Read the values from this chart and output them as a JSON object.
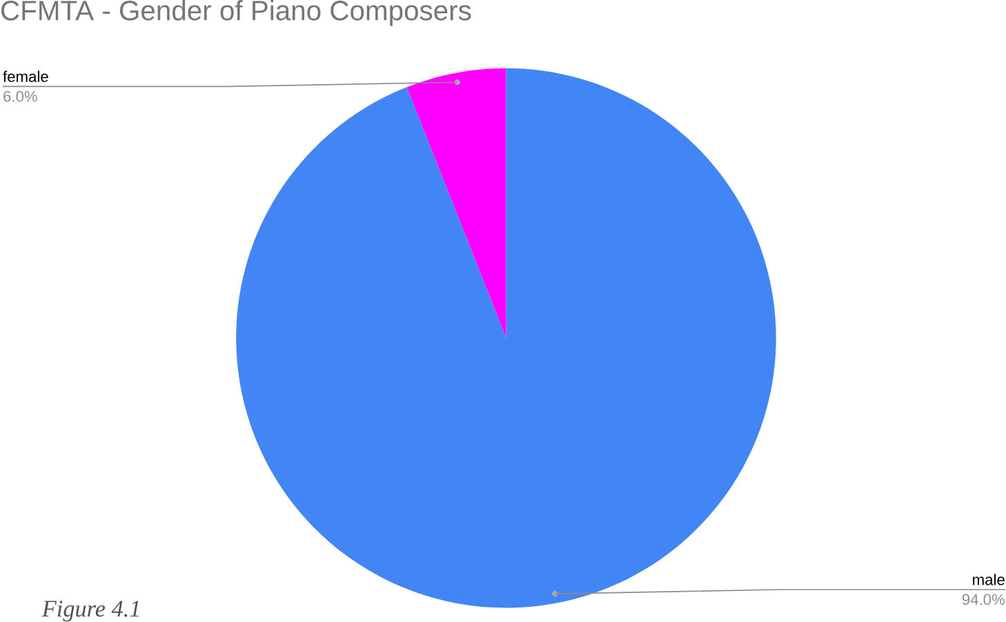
{
  "chart_data": {
    "type": "pie",
    "title": "CFMTA - Gender of Piano Composers",
    "categories": [
      "female",
      "male"
    ],
    "values": [
      6.0,
      94.0
    ],
    "value_labels": [
      "6.0%",
      "94.0%"
    ],
    "colors": [
      "#ff00ff",
      "#4285f4"
    ],
    "annotations": [
      "*Figure 4.1*"
    ]
  }
}
